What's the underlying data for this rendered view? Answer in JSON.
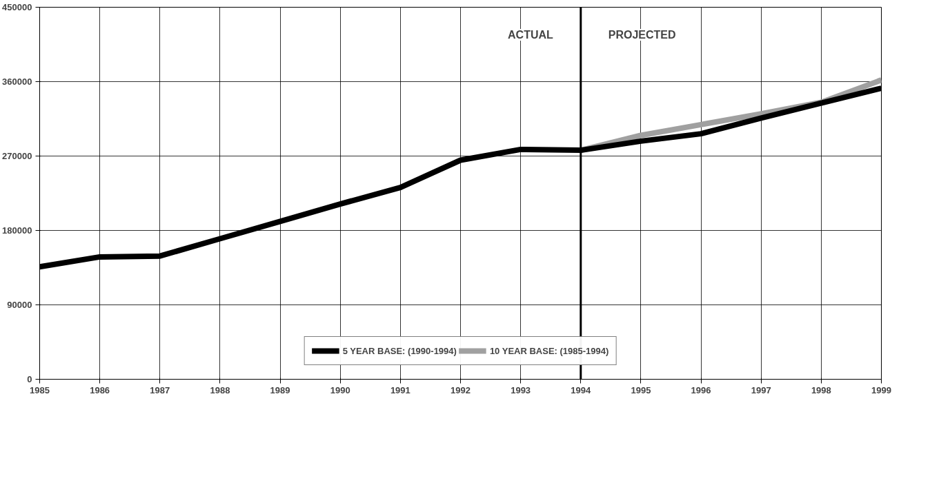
{
  "chart_data": {
    "type": "line",
    "x": [
      1985,
      1986,
      1987,
      1988,
      1989,
      1990,
      1991,
      1992,
      1993,
      1994,
      1995,
      1996,
      1997,
      1998,
      1999
    ],
    "series": [
      {
        "name": "10 YEAR BASE: (1985-1994)",
        "color": "#a0a0a0",
        "x": [
          1994,
          1995,
          1996,
          1997,
          1998,
          1999
        ],
        "values": [
          277000,
          295000,
          308000,
          321000,
          335000,
          362000
        ]
      },
      {
        "name": "5 YEAR BASE: (1990-1994)",
        "color": "#000000",
        "values": [
          136000,
          148000,
          149000,
          170000,
          191000,
          212000,
          232000,
          265000,
          278000,
          277000,
          288000,
          297000,
          316000,
          334000,
          352000
        ]
      }
    ],
    "xlim": [
      1985,
      1999
    ],
    "xticks": [
      1985,
      1986,
      1987,
      1988,
      1989,
      1990,
      1991,
      1992,
      1993,
      1994,
      1995,
      1996,
      1997,
      1998,
      1999
    ],
    "ylim": [
      0,
      450000
    ],
    "yticks": [
      0,
      90000,
      180000,
      270000,
      360000,
      450000
    ],
    "ref_lines": [
      {
        "axis": "x",
        "value": 1994,
        "color": "#000000"
      }
    ],
    "annotations": [
      "ACTUAL",
      "PROJECTED"
    ],
    "grid": true,
    "legend": "bottom",
    "marker": "none",
    "line_style": "solid"
  }
}
